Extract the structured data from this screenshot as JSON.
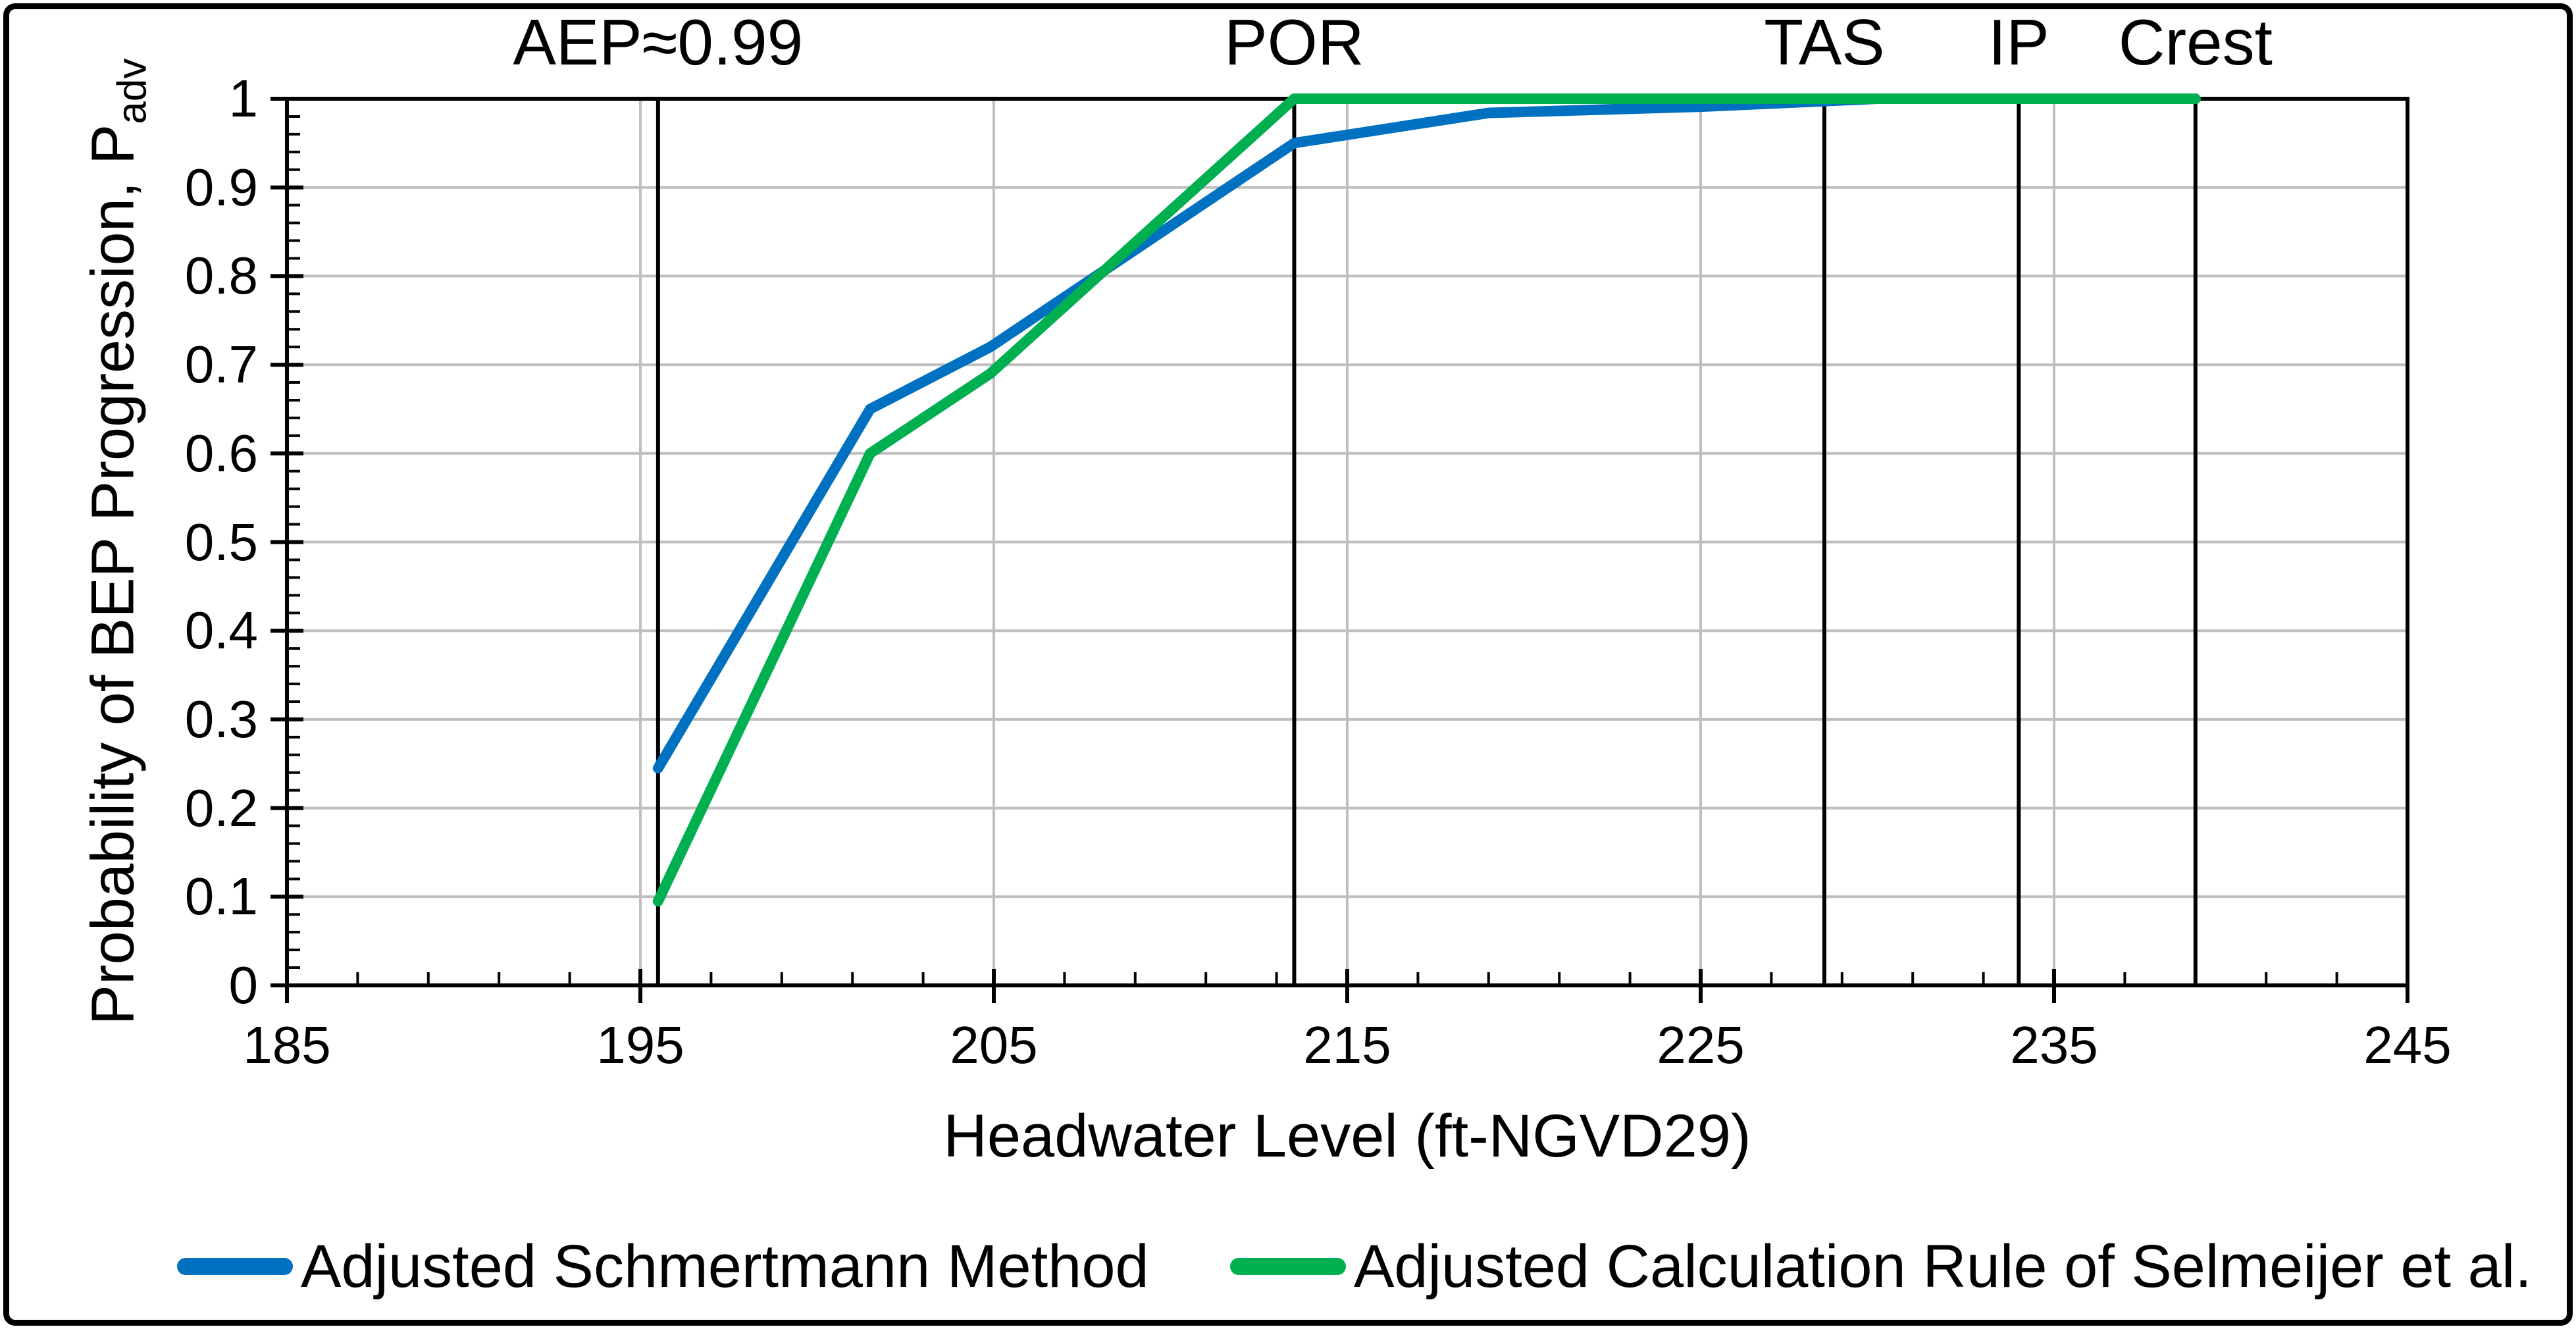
{
  "figure": {
    "background_color": "#FFFFFF",
    "border_color": "#000000"
  },
  "chart_data": {
    "type": "line",
    "title": "",
    "xlabel": "Headwater Level (ft-NGVD29)",
    "ylabel_main": "Probability of BEP Progression, P",
    "ylabel_sub": "adv",
    "xlim": [
      185,
      245
    ],
    "ylim": [
      0,
      1
    ],
    "x_tick_labels": [
      "185",
      "195",
      "205",
      "215",
      "225",
      "235",
      "245"
    ],
    "x_tick_values": [
      185,
      195,
      205,
      215,
      225,
      235,
      245
    ],
    "y_tick_labels": [
      "0",
      "0.1",
      "0.2",
      "0.3",
      "0.4",
      "0.5",
      "0.6",
      "0.7",
      "0.8",
      "0.9",
      "1"
    ],
    "y_tick_values": [
      0,
      0.1,
      0.2,
      0.3,
      0.4,
      0.5,
      0.6,
      0.7,
      0.8,
      0.9,
      1
    ],
    "x_minor_step": 2,
    "y_minor_step": 0.02,
    "grid": {
      "color": "#BFBFBF",
      "x_values": [
        195,
        205,
        215,
        225,
        235
      ],
      "y_values": [
        0.1,
        0.2,
        0.3,
        0.4,
        0.5,
        0.6,
        0.7,
        0.8,
        0.9
      ]
    },
    "reference_lines": [
      {
        "label": "AEP≈0.99",
        "x": 195.5,
        "color": "#000000"
      },
      {
        "label": "POR",
        "x": 213.5,
        "color": "#000000"
      },
      {
        "label": "TAS",
        "x": 228.5,
        "color": "#000000"
      },
      {
        "label": "IP",
        "x": 234.0,
        "color": "#000000"
      },
      {
        "label": "Crest",
        "x": 239.0,
        "color": "#000000"
      }
    ],
    "series": [
      {
        "name": "Adjusted Schmertmann Method",
        "color": "#0070C0",
        "points": [
          [
            195.5,
            0.245
          ],
          [
            201.5,
            0.65
          ],
          [
            204.9,
            0.72
          ],
          [
            213.5,
            0.95
          ],
          [
            219.0,
            0.984
          ],
          [
            225.0,
            0.991
          ],
          [
            230.0,
            1.0
          ],
          [
            239.0,
            1.0
          ]
        ]
      },
      {
        "name": "Adjusted Calculation Rule of Selmeijer et al.",
        "color": "#00B050",
        "points": [
          [
            195.5,
            0.095
          ],
          [
            201.5,
            0.6
          ],
          [
            204.9,
            0.69
          ],
          [
            213.5,
            1.0
          ],
          [
            239.0,
            1.0
          ]
        ]
      }
    ],
    "legend_position": "bottom"
  }
}
